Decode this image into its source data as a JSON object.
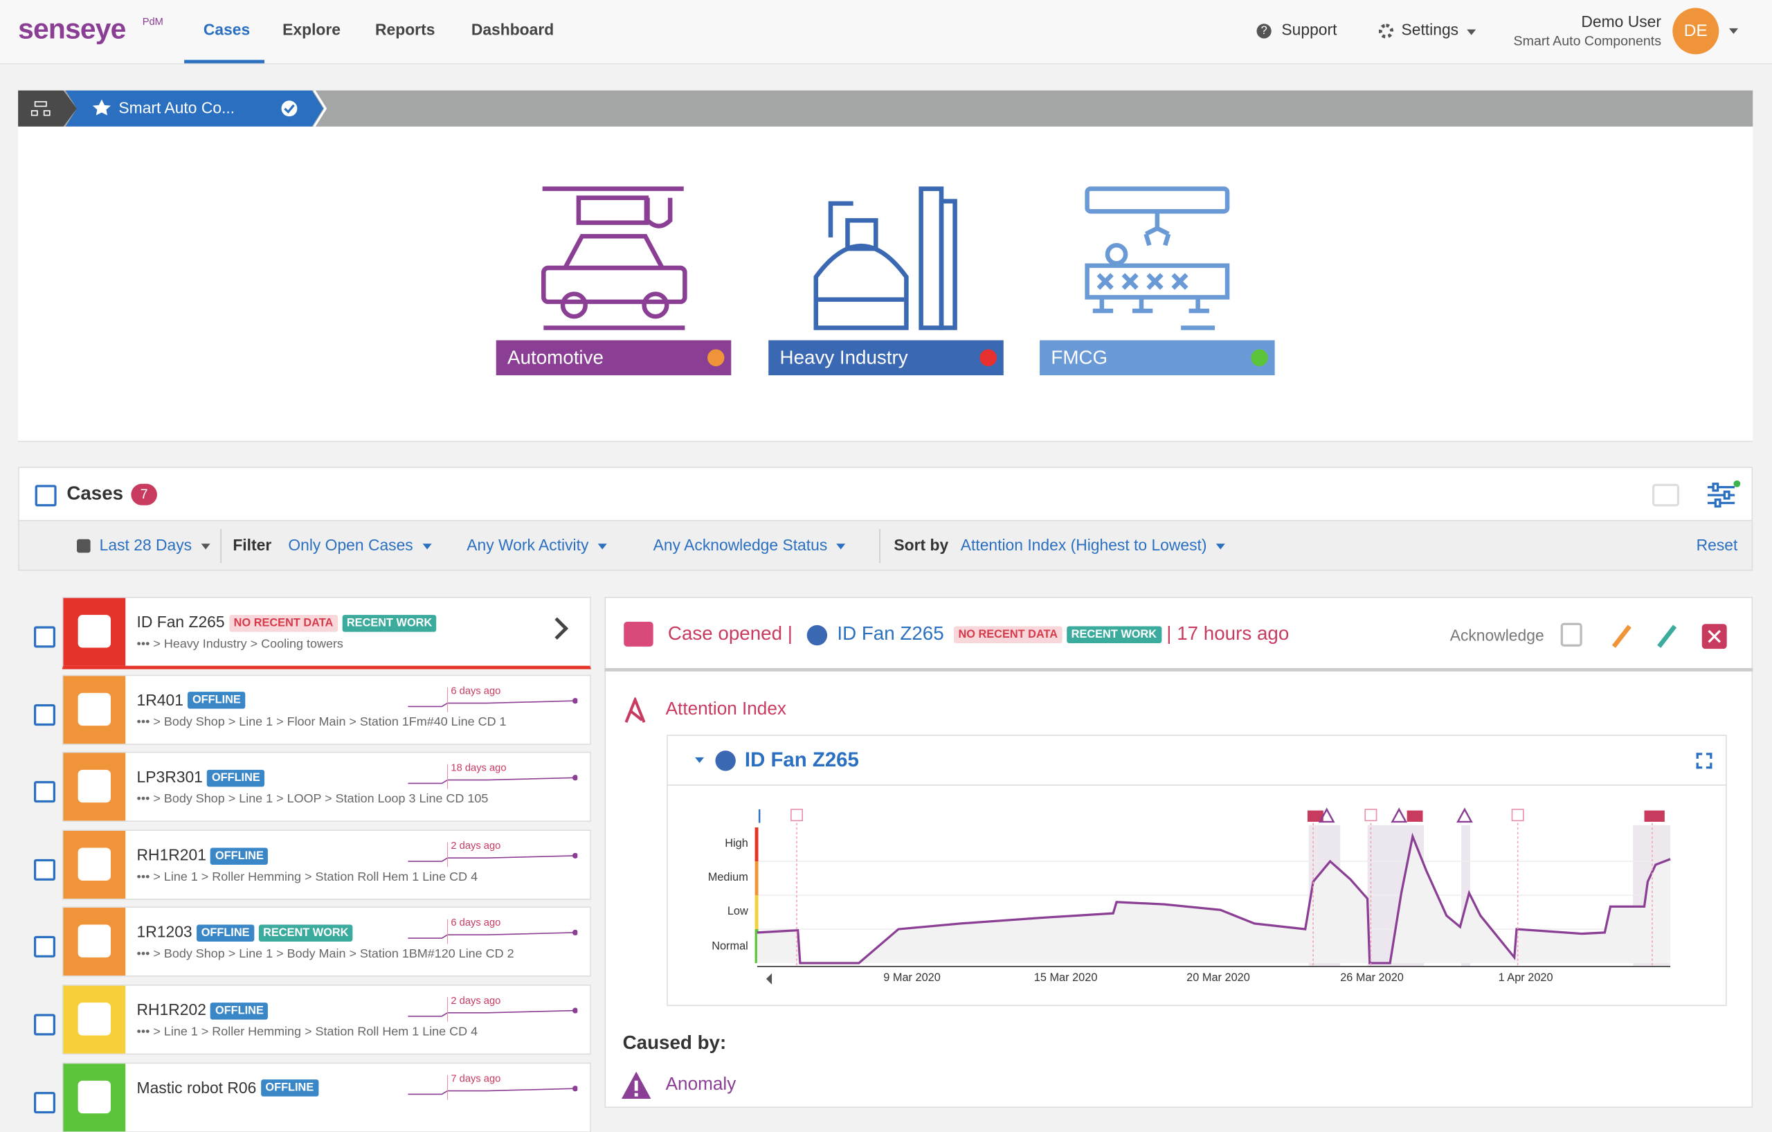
{
  "nav": {
    "logo": "senseye",
    "logo_sup": "PdM",
    "items": [
      "Cases",
      "Explore",
      "Reports",
      "Dashboard"
    ],
    "support": "Support",
    "settings": "Settings",
    "user_name": "Demo User",
    "user_company": "Smart Auto Components",
    "avatar": "DE"
  },
  "breadcrumb": "Smart Auto Co...",
  "tiles": [
    {
      "label": "Automotive",
      "color": "#8b3f94",
      "status": "#f0943a"
    },
    {
      "label": "Heavy Industry",
      "color": "#3b68b2",
      "status": "#e8312f"
    },
    {
      "label": "FMCG",
      "color": "#6a9ad6",
      "status": "#5cc43a"
    }
  ],
  "cases_panel": {
    "title": "Cases",
    "count": 7,
    "date_range": "Last 28 Days",
    "filter_label": "Filter",
    "filters": [
      "Only Open Cases",
      "Any Work Activity",
      "Any Acknowledge Status"
    ],
    "sort_label": "Sort by",
    "sort": "Attention Index (Highest to Lowest)",
    "reset": "Reset"
  },
  "case_list": [
    {
      "name": "ID Fan Z265",
      "color": "#e63329",
      "badges": [
        {
          "text": "NO RECENT DATA",
          "color": "#f8d7da",
          "text_color": "#d63a4a"
        },
        {
          "text": "RECENT WORK",
          "color": "#3bab9e",
          "text_color": "#ffffff"
        }
      ],
      "path": "••• > Heavy Industry > Cooling towers"
    },
    {
      "name": "1R401",
      "color": "#f0943a",
      "badges": [
        {
          "text": "OFFLINE",
          "color": "#3a87c8",
          "text_color": "#ffffff"
        }
      ],
      "path": "••• > Body Shop > Line 1 > Floor Main > Station 1Fm#40 Line CD 1",
      "time": "6 days ago"
    },
    {
      "name": "LP3R301",
      "color": "#f0943a",
      "badges": [
        {
          "text": "OFFLINE",
          "color": "#3a87c8",
          "text_color": "#ffffff"
        }
      ],
      "path": "••• > Body Shop > Line 1 > LOOP > Station Loop 3 Line CD 105",
      "time": "18 days ago"
    },
    {
      "name": "RH1R201",
      "color": "#f0943a",
      "badges": [
        {
          "text": "OFFLINE",
          "color": "#3a87c8",
          "text_color": "#ffffff"
        }
      ],
      "path": "••• > Line 1 > Roller Hemming > Station Roll Hem 1 Line CD 4",
      "time": "2 days ago"
    },
    {
      "name": "1R1203",
      "color": "#f0943a",
      "badges": [
        {
          "text": "OFFLINE",
          "color": "#3a87c8",
          "text_color": "#ffffff"
        },
        {
          "text": "RECENT WORK",
          "color": "#3bab9e",
          "text_color": "#ffffff"
        }
      ],
      "path": "••• > Body Shop > Line 1 > Body Main > Station 1BM#120 Line CD 2",
      "time": "6 days ago"
    },
    {
      "name": "RH1R202",
      "color": "#f5d03a",
      "badges": [
        {
          "text": "OFFLINE",
          "color": "#3a87c8",
          "text_color": "#ffffff"
        }
      ],
      "path": "••• > Line 1 > Roller Hemming > Station Roll Hem 1 Line CD 4",
      "time": "2 days ago"
    },
    {
      "name": "Mastic robot R06",
      "color": "#5cc43a",
      "badges": [
        {
          "text": "OFFLINE",
          "color": "#3a87c8",
          "text_color": "#ffffff"
        }
      ],
      "time": "7 days ago"
    }
  ],
  "detail": {
    "opened": "Case opened |",
    "asset": "ID Fan Z265",
    "badges": [
      {
        "text": "NO RECENT DATA",
        "color": "#f8d7da",
        "text_color": "#d63a4a"
      },
      {
        "text": "RECENT WORK",
        "color": "#3bab9e",
        "text_color": "#ffffff"
      }
    ],
    "age": "| 17 hours ago",
    "acknowledge": "Acknowledge",
    "section": "Attention Index",
    "chart_title": "ID Fan Z265",
    "levels": [
      "High",
      "Medium",
      "Low",
      "Normal"
    ],
    "dates": [
      "9 Mar 2020",
      "15 Mar 2020",
      "20 Mar 2020",
      "26 Mar 2020",
      "1 Apr 2020"
    ],
    "caused_by": "Caused by:",
    "cause": "Anomaly"
  }
}
